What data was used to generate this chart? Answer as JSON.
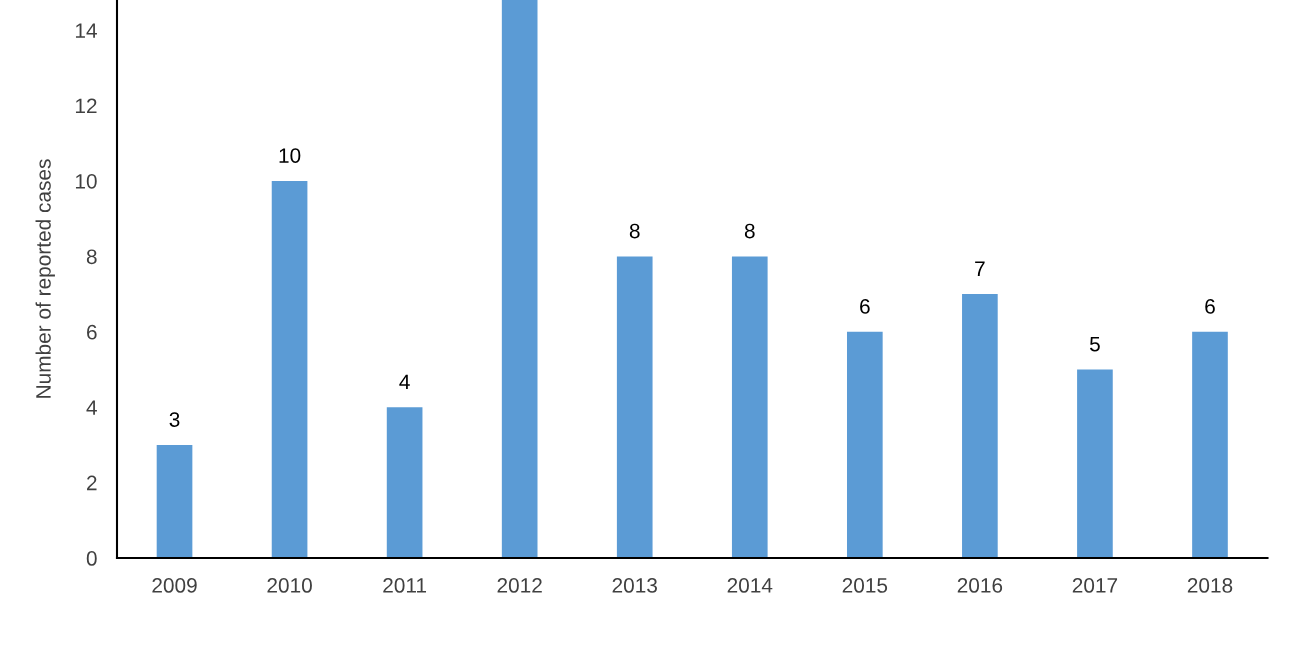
{
  "chart_data": {
    "type": "bar",
    "ylabel": "Number of reported cases",
    "categories": [
      "2009",
      "2010",
      "2011",
      "2012",
      "2013",
      "2014",
      "2015",
      "2016",
      "2017",
      "2018"
    ],
    "values": [
      3,
      10,
      4,
      14.8,
      8,
      8,
      6,
      7,
      5,
      6
    ],
    "value_labels": [
      "3",
      "10",
      "4",
      null,
      "8",
      "8",
      "6",
      "7",
      "5",
      "6"
    ],
    "color": "#5b9bd5",
    "ylim": [
      0,
      14.8
    ],
    "yticks": [
      0,
      2,
      4,
      6,
      8,
      10,
      12,
      14
    ]
  }
}
